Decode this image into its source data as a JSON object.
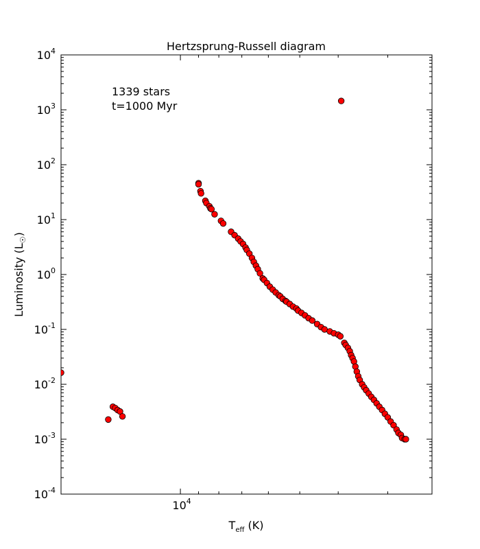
{
  "chart_data": {
    "type": "scatter",
    "title": "Hertzsprung-Russell diagram",
    "xlabel_main": "T",
    "xlabel_sub": "eff",
    "xlabel_unit": " (K)",
    "ylabel_main": "Luminosity (L",
    "ylabel_sun": "☉",
    "ylabel_close": ")",
    "x_scale": "log",
    "x_axis_reversed": true,
    "xlim": [
      20000,
      2320
    ],
    "y_scale": "log",
    "ylim": [
      0.0001,
      10000
    ],
    "x_tick_labels": [
      {
        "value": 10000,
        "base": "10",
        "exp": "4"
      }
    ],
    "y_tick_labels": [
      {
        "value": 10000,
        "base": "10",
        "exp": "4"
      },
      {
        "value": 1000,
        "base": "10",
        "exp": "3"
      },
      {
        "value": 100,
        "base": "10",
        "exp": "2"
      },
      {
        "value": 10,
        "base": "10",
        "exp": "1"
      },
      {
        "value": 1,
        "base": "10",
        "exp": "0"
      },
      {
        "value": 0.1,
        "base": "10",
        "exp": "-1"
      },
      {
        "value": 0.01,
        "base": "10",
        "exp": "-2"
      },
      {
        "value": 0.001,
        "base": "10",
        "exp": "-3"
      },
      {
        "value": 0.0001,
        "base": "10",
        "exp": "-4"
      }
    ],
    "annotations": [
      "1339 stars",
      "t=1000 Myr"
    ],
    "grid": false,
    "marker_color": "#ff0000",
    "marker_edge_color": "#000000",
    "series": [
      {
        "points": [
          [
            20000,
            0.0163
          ],
          [
            15200,
            0.00228
          ],
          [
            14800,
            0.0039
          ],
          [
            14600,
            0.0037
          ],
          [
            14400,
            0.0034
          ],
          [
            14200,
            0.0032
          ],
          [
            14000,
            0.0026
          ],
          [
            3930,
            1450
          ],
          [
            9000,
            46
          ],
          [
            9000,
            44
          ],
          [
            8900,
            33
          ],
          [
            8870,
            30
          ],
          [
            8650,
            22
          ],
          [
            8600,
            20
          ],
          [
            8450,
            17.5
          ],
          [
            8400,
            16
          ],
          [
            8350,
            15.5
          ],
          [
            8200,
            12.5
          ],
          [
            7900,
            9.5
          ],
          [
            7800,
            8.5
          ],
          [
            7450,
            6.0
          ],
          [
            7300,
            5.2
          ],
          [
            7150,
            4.5
          ],
          [
            7050,
            4.0
          ],
          [
            6950,
            3.6
          ],
          [
            6850,
            3.1
          ],
          [
            6800,
            2.8
          ],
          [
            6700,
            2.4
          ],
          [
            6600,
            2.0
          ],
          [
            6530,
            1.7
          ],
          [
            6450,
            1.45
          ],
          [
            6380,
            1.25
          ],
          [
            6300,
            1.05
          ],
          [
            6200,
            0.85
          ],
          [
            6150,
            0.8
          ],
          [
            6050,
            0.7
          ],
          [
            5950,
            0.6
          ],
          [
            5850,
            0.53
          ],
          [
            5750,
            0.47
          ],
          [
            5650,
            0.42
          ],
          [
            5600,
            0.4
          ],
          [
            5520,
            0.36
          ],
          [
            5430,
            0.33
          ],
          [
            5400,
            0.32
          ],
          [
            5300,
            0.29
          ],
          [
            5200,
            0.26
          ],
          [
            5100,
            0.24
          ],
          [
            5050,
            0.22
          ],
          [
            4950,
            0.2
          ],
          [
            4850,
            0.18
          ],
          [
            4750,
            0.16
          ],
          [
            4650,
            0.145
          ],
          [
            4520,
            0.125
          ],
          [
            4420,
            0.11
          ],
          [
            4330,
            0.1
          ],
          [
            4200,
            0.092
          ],
          [
            4100,
            0.085
          ],
          [
            4000,
            0.08
          ],
          [
            3950,
            0.075
          ],
          [
            3860,
            0.057
          ],
          [
            3830,
            0.052
          ],
          [
            3780,
            0.046
          ],
          [
            3740,
            0.04
          ],
          [
            3710,
            0.034
          ],
          [
            3680,
            0.03
          ],
          [
            3650,
            0.026
          ],
          [
            3620,
            0.021
          ],
          [
            3590,
            0.017
          ],
          [
            3560,
            0.014
          ],
          [
            3530,
            0.012
          ],
          [
            3480,
            0.01
          ],
          [
            3440,
            0.0088
          ],
          [
            3400,
            0.0078
          ],
          [
            3350,
            0.0068
          ],
          [
            3300,
            0.0059
          ],
          [
            3250,
            0.0052
          ],
          [
            3200,
            0.0045
          ],
          [
            3150,
            0.0039
          ],
          [
            3100,
            0.0034
          ],
          [
            3050,
            0.0029
          ],
          [
            3000,
            0.0025
          ],
          [
            2950,
            0.0021
          ],
          [
            2900,
            0.0018
          ],
          [
            2850,
            0.0015
          ],
          [
            2820,
            0.0013
          ],
          [
            2780,
            0.0012
          ],
          [
            2760,
            0.00105
          ],
          [
            2720,
            0.001
          ],
          [
            2700,
            0.001
          ]
        ]
      }
    ]
  }
}
